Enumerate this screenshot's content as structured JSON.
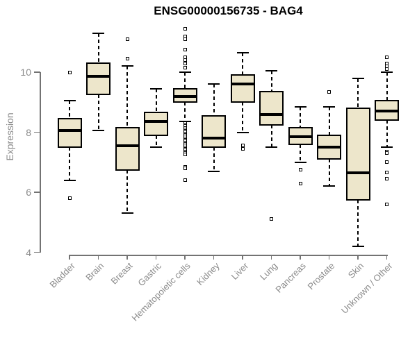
{
  "chart_data": {
    "type": "boxplot",
    "title": "ENSG00000156735 - BAG4",
    "xlabel": "",
    "ylabel": "Expression",
    "ylim": [
      4,
      11.6
    ],
    "yticks": [
      10,
      8,
      6,
      4
    ],
    "grid": false,
    "legend": false,
    "categories": [
      "Bladder",
      "Brain",
      "Breast",
      "Gastric",
      "Hematopoietic cells",
      "Kidney",
      "Liver",
      "Lung",
      "Pancreas",
      "Prostate",
      "Skin",
      "Unknown / Other"
    ],
    "series": [
      {
        "category": "Bladder",
        "whisker_low": 6.4,
        "q1": 7.5,
        "median": 8.05,
        "q3": 8.45,
        "whisker_high": 9.05,
        "outliers": [
          10.0,
          5.8
        ]
      },
      {
        "category": "Brain",
        "whisker_low": 8.05,
        "q1": 9.25,
        "median": 9.85,
        "q3": 10.3,
        "whisker_high": 11.3,
        "outliers": []
      },
      {
        "category": "Breast",
        "whisker_low": 5.3,
        "q1": 6.75,
        "median": 7.55,
        "q3": 8.15,
        "whisker_high": 10.2,
        "outliers": [
          11.1,
          10.45
        ]
      },
      {
        "category": "Gastric",
        "whisker_low": 7.5,
        "q1": 7.9,
        "median": 8.35,
        "q3": 8.65,
        "whisker_high": 9.45,
        "outliers": []
      },
      {
        "category": "Hematopoietic cells",
        "whisker_low": 8.35,
        "q1": 9.0,
        "median": 9.2,
        "q3": 9.45,
        "whisker_high": 10.0,
        "outliers": [
          11.45,
          11.2,
          11.1,
          10.75,
          10.5,
          10.4,
          10.3,
          10.15,
          8.3,
          8.25,
          8.2,
          8.15,
          8.1,
          8.05,
          8.0,
          7.95,
          7.9,
          7.85,
          7.8,
          7.75,
          7.7,
          7.65,
          7.6,
          7.55,
          7.5,
          7.45,
          7.4,
          7.35,
          7.3,
          7.25,
          6.85,
          6.8,
          6.4
        ]
      },
      {
        "category": "Kidney",
        "whisker_low": 6.7,
        "q1": 7.5,
        "median": 7.8,
        "q3": 8.55,
        "whisker_high": 9.6,
        "outliers": []
      },
      {
        "category": "Liver",
        "whisker_low": 8.0,
        "q1": 9.0,
        "median": 9.6,
        "q3": 9.9,
        "whisker_high": 10.65,
        "outliers": [
          7.55,
          7.45
        ]
      },
      {
        "category": "Lung",
        "whisker_low": 7.5,
        "q1": 8.25,
        "median": 8.6,
        "q3": 9.35,
        "whisker_high": 10.05,
        "outliers": [
          5.1
        ]
      },
      {
        "category": "Pancreas",
        "whisker_low": 7.0,
        "q1": 7.6,
        "median": 7.85,
        "q3": 8.15,
        "whisker_high": 8.85,
        "outliers": [
          6.75,
          6.3
        ]
      },
      {
        "category": "Prostate",
        "whisker_low": 6.2,
        "q1": 7.1,
        "median": 7.5,
        "q3": 7.9,
        "whisker_high": 8.85,
        "outliers": [
          9.35
        ]
      },
      {
        "category": "Skin",
        "whisker_low": 4.2,
        "q1": 5.75,
        "median": 6.65,
        "q3": 8.8,
        "whisker_high": 9.8,
        "outliers": []
      },
      {
        "category": "Unknown / Other",
        "whisker_low": 7.5,
        "q1": 8.4,
        "median": 8.7,
        "q3": 9.05,
        "whisker_high": 10.0,
        "outliers": [
          10.5,
          10.3,
          10.2,
          10.1,
          7.35,
          7.3,
          7.0,
          6.65,
          6.45,
          5.6
        ]
      }
    ]
  },
  "colors": {
    "background": "#ffffff",
    "box_fill": "#ede6cb",
    "box_stroke": "#000000",
    "median": "#000000",
    "whisker": "#000000",
    "outlier_stroke": "#000000",
    "axis_line": "#737373",
    "tick_label": "#8a8a8a",
    "title": "#000000"
  }
}
